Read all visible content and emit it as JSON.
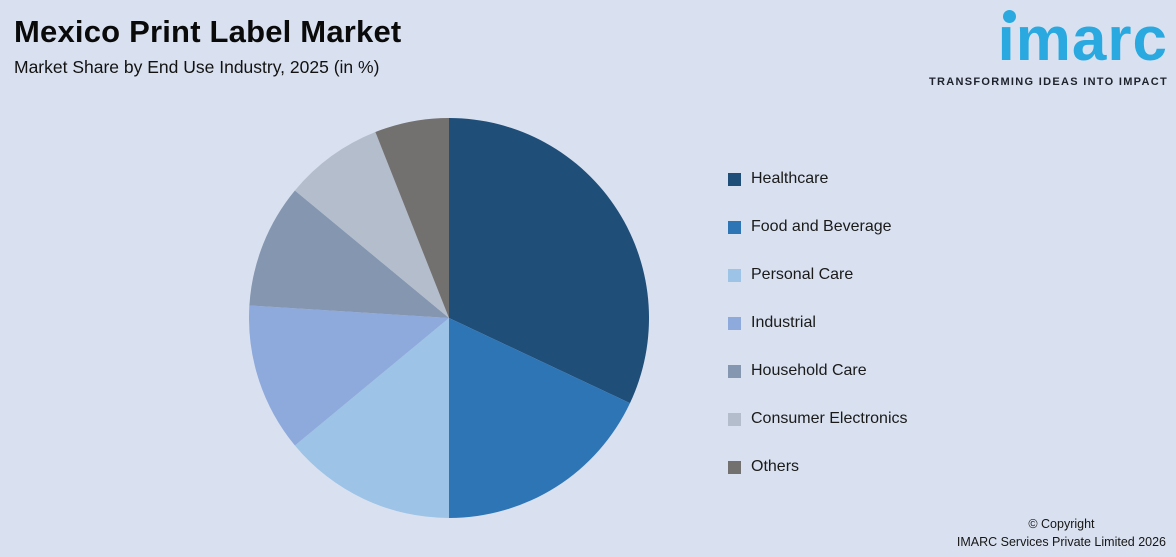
{
  "background_color": "#D9E1F0",
  "header": {
    "title": "Mexico Print Label Market",
    "subtitle": "Market Share by End Use Industry, 2025 (in %)"
  },
  "logo": {
    "brand": "imarc",
    "brand_dotless": "ımarc",
    "tagline": "TRANSFORMING IDEAS INTO IMPACT",
    "brand_color": "#29A9E0",
    "tagline_color": "#1E222C"
  },
  "chart_data": {
    "type": "pie",
    "title": "Mexico Print Label Market",
    "subtitle": "Market Share by End Use Industry, 2025 (in %)",
    "unit": "%",
    "start_angle_deg": 0,
    "direction": "clockwise",
    "legend_position": "right",
    "labels": [
      "Healthcare",
      "Food and Beverage",
      "Personal Care",
      "Industrial",
      "Household Care",
      "Consumer Electronics",
      "Others"
    ],
    "values": [
      32,
      18,
      14,
      12,
      10,
      8,
      6
    ],
    "colors": [
      "#1F4E79",
      "#2E75B6",
      "#9DC3E6",
      "#8EA9DB",
      "#8496B0",
      "#B3BDCB",
      "#737070"
    ]
  },
  "footer": {
    "copyright_line1": "© Copyright",
    "copyright_line2": "IMARC Services Private Limited 2026"
  }
}
